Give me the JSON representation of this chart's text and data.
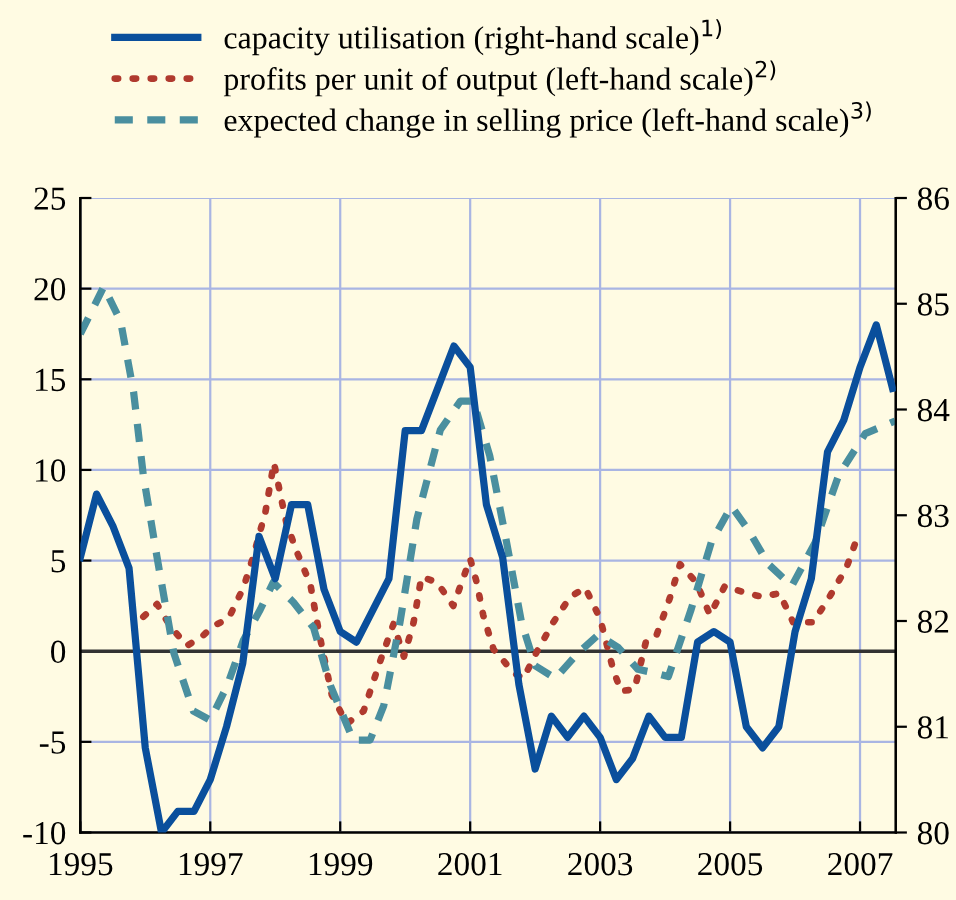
{
  "chart_data": {
    "type": "line",
    "xlim": [
      1995,
      2007.55
    ],
    "xticks": [
      1995,
      1997,
      1999,
      2001,
      2003,
      2005,
      2007
    ],
    "ylim": [
      -10,
      25
    ],
    "yticks": [
      -10,
      -5,
      0,
      5,
      10,
      15,
      20,
      25
    ],
    "y2lim": [
      80,
      86
    ],
    "y2ticks": [
      80,
      81,
      82,
      83,
      84,
      85,
      86
    ],
    "grid": true,
    "legend": "top",
    "ref_lines": [
      {
        "axis": "y",
        "value": 0,
        "color": "#333333",
        "line_style": "solid"
      }
    ],
    "series": [
      {
        "name": "capacity utilisation (right-hand scale)$^{1)}$",
        "color": "#0a4f9c",
        "axis": "y2",
        "line_style": "solid",
        "x": [
          1995.0,
          1995.25,
          1995.5,
          1995.75,
          1996.0,
          1996.25,
          1996.5,
          1996.75,
          1997.0,
          1997.25,
          1997.5,
          1997.75,
          1998.0,
          1998.25,
          1998.5,
          1998.75,
          1999.0,
          1999.25,
          1999.5,
          1999.75,
          2000.0,
          2000.25,
          2000.5,
          2000.75,
          2001.0,
          2001.25,
          2001.5,
          2001.75,
          2002.0,
          2002.25,
          2002.5,
          2002.75,
          2003.0,
          2003.25,
          2003.5,
          2003.75,
          2004.0,
          2004.25,
          2004.5,
          2004.75,
          2005.0,
          2005.25,
          2005.5,
          2005.75,
          2006.0,
          2006.25,
          2006.5,
          2006.75,
          2007.0,
          2007.25,
          2007.5
        ],
        "values": [
          82.6,
          83.2,
          82.9,
          82.5,
          80.8,
          80.0,
          80.2,
          80.2,
          80.5,
          81.0,
          81.6,
          82.8,
          82.4,
          83.1,
          83.1,
          82.3,
          81.9,
          81.8,
          82.1,
          82.4,
          83.8,
          83.8,
          84.2,
          84.6,
          84.4,
          83.1,
          82.6,
          81.4,
          80.6,
          81.1,
          80.9,
          81.1,
          80.9,
          80.5,
          80.7,
          81.1,
          80.9,
          80.9,
          81.8,
          81.9,
          81.8,
          81.0,
          80.8,
          81.0,
          81.9,
          82.4,
          83.6,
          83.9,
          84.4,
          84.8,
          84.2
        ]
      },
      {
        "name": "profits per unit of output (left-hand scale)$^{2)}$",
        "color": "#b03a2e",
        "line_style": "dotted",
        "x": [
          1995.97,
          1996.18,
          1996.38,
          1996.64,
          1996.87,
          1997.05,
          1997.28,
          1997.51,
          1997.66,
          1997.85,
          1997.98,
          1998.07,
          1998.17,
          1998.33,
          1998.54,
          1998.67,
          1998.87,
          1999.1,
          1999.36,
          1999.6,
          1999.82,
          1999.98,
          2000.13,
          2000.25,
          2000.49,
          2000.74,
          2001.0,
          2001.1,
          2001.2,
          2001.36,
          2001.46,
          2001.67,
          2001.82,
          2002.03,
          2002.28,
          2002.54,
          2002.77,
          2003.0,
          2003.2,
          2003.32,
          2003.53,
          2003.71,
          2003.87,
          2004.07,
          2004.23,
          2004.48,
          2004.69,
          2004.92,
          2005.25,
          2005.5,
          2005.76,
          2005.97,
          2006.28,
          2006.53,
          2006.79,
          2006.97
        ],
        "values": [
          1.9,
          2.6,
          1.4,
          0.3,
          0.8,
          1.4,
          1.8,
          3.5,
          5.2,
          7.7,
          10.4,
          8.8,
          7.1,
          5.5,
          3.7,
          1.1,
          -2.4,
          -4.0,
          -3.3,
          -0.7,
          1.5,
          -0.3,
          1.6,
          4.1,
          3.8,
          2.5,
          5.1,
          3.8,
          2.0,
          0.1,
          -0.3,
          -1.2,
          -1.5,
          0.0,
          1.6,
          3.0,
          3.5,
          1.8,
          -1.0,
          -2.2,
          -2.1,
          0.6,
          0.9,
          2.9,
          4.8,
          3.8,
          2.0,
          3.6,
          3.2,
          3.0,
          3.2,
          1.6,
          1.6,
          3.0,
          4.6,
          6.4
        ]
      },
      {
        "name": "expected change in selling price (left-hand scale)$^{3)}$",
        "color": "#4a8f9f",
        "line_style": "dashed",
        "x": [
          1995.0,
          1995.36,
          1995.62,
          1995.82,
          1995.97,
          1996.18,
          1996.44,
          1996.74,
          1997.0,
          1997.26,
          1997.51,
          1997.77,
          1997.97,
          1998.28,
          1998.59,
          1998.85,
          1999.2,
          1999.46,
          1999.67,
          1999.92,
          2000.18,
          2000.54,
          2000.85,
          2001.05,
          2001.3,
          2001.55,
          2001.79,
          2002.0,
          2002.31,
          2002.66,
          2002.97,
          2003.28,
          2003.58,
          2003.84,
          2004.05,
          2004.4,
          2004.71,
          2005.02,
          2005.28,
          2005.59,
          2005.95,
          2006.31,
          2006.67,
          2007.08,
          2007.54
        ],
        "values": [
          17.5,
          20.1,
          18.2,
          14.3,
          9.7,
          5.2,
          -0.1,
          -3.3,
          -3.8,
          -1.9,
          0.6,
          2.3,
          3.8,
          2.7,
          1.3,
          -1.9,
          -4.9,
          -4.9,
          -3.0,
          1.6,
          7.3,
          12.2,
          13.8,
          13.8,
          10.8,
          6.2,
          1.6,
          -0.8,
          -1.5,
          -0.1,
          0.9,
          0.2,
          -1.0,
          -1.2,
          -1.4,
          2.3,
          6.0,
          8.0,
          6.7,
          4.8,
          3.6,
          6.0,
          9.7,
          12.0,
          12.7
        ]
      }
    ]
  }
}
